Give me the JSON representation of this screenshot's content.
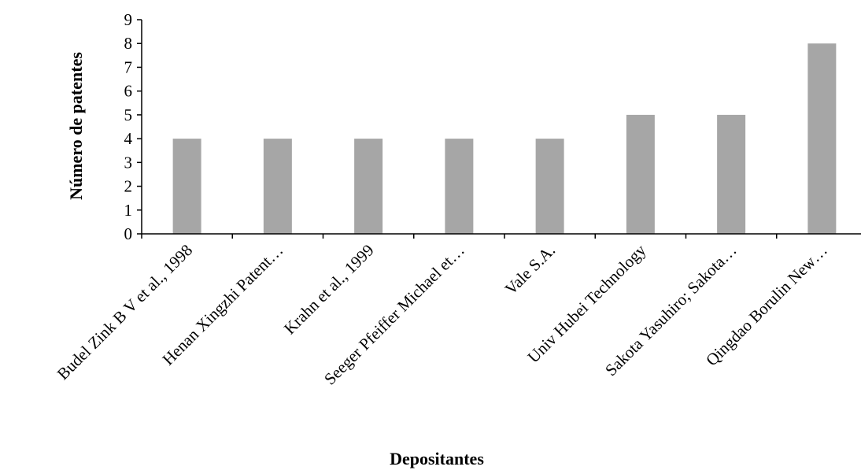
{
  "chart_data": {
    "type": "bar",
    "title": "",
    "xlabel": "Depositantes",
    "ylabel": "Número de patentes",
    "categories": [
      "Budel Zink B V et al., 1998",
      "Henan Xingzhi Patent…",
      "Krahn et al., 1999",
      "Seeger Pfeiffer Michael  et…",
      "Vale S.A.",
      "Univ Hubei Technology",
      "Sakota Yasuhiro; Sakota…",
      "Qingdao Borulin New…"
    ],
    "values": [
      4,
      4,
      4,
      4,
      4,
      5,
      5,
      8
    ],
    "ylim": [
      0,
      9
    ],
    "yticks": [
      "0",
      "1",
      "2",
      "3",
      "4",
      "5",
      "6",
      "7",
      "8",
      "9"
    ],
    "grid": false,
    "legend": "none",
    "bar_color": "#a6a6a6"
  }
}
